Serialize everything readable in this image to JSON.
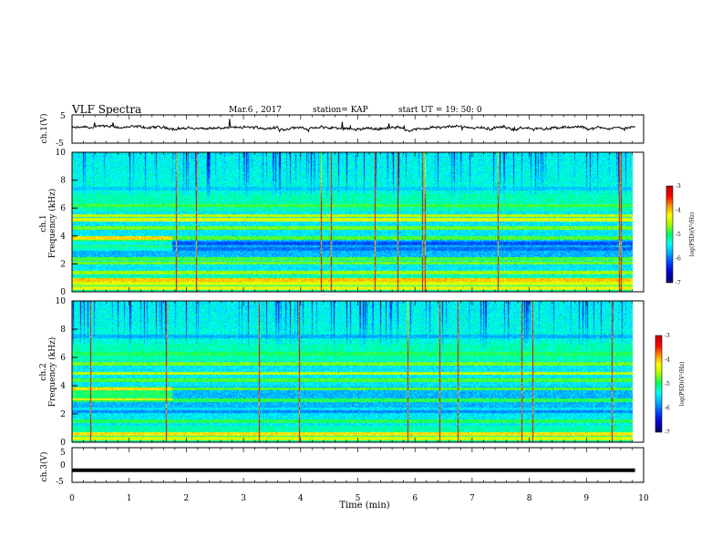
{
  "header": {
    "title": "VLF Spectra",
    "date": "Mar.6 , 2017",
    "station": "station= KAP",
    "start": "start  UT =   19: 50: 0"
  },
  "colors": {
    "colormap": [
      "#08006e",
      "#0000c8",
      "#0040ff",
      "#00a8ff",
      "#00ffff",
      "#00ff60",
      "#a0ff00",
      "#ffff00",
      "#ff9000",
      "#ff0000",
      "#c00000"
    ],
    "trace": "#000000"
  },
  "chart_data": [
    {
      "type": "line",
      "panel": "ch1-waveform",
      "ylabel": "ch.1(V)",
      "xlim": [
        0,
        10
      ],
      "ylim": [
        -5,
        5
      ],
      "yticks": [
        "5",
        "-5"
      ],
      "x_end": 9.85,
      "description_of_values": "noisy trace around 0 V, range about -1 to +2.5 V",
      "mean": 0.3,
      "spread": 1.2
    },
    {
      "type": "heatmap",
      "panel": "ch1-spectrogram",
      "ylabel": "ch.1\nFrequency (kHz)",
      "xlim": [
        0,
        10
      ],
      "ylim": [
        0,
        10
      ],
      "yticks": [
        "0",
        "2",
        "4",
        "6",
        "8",
        "10"
      ],
      "colorbar": {
        "label": "log(PSD)(V²/Hz)",
        "range": [
          -7,
          -3
        ],
        "ticks": [
          "-3",
          "-4",
          "-5",
          "-6",
          "-7"
        ]
      },
      "bands": [
        {
          "f": 0.3,
          "level": 0.85
        },
        {
          "f": 0.6,
          "level": 0.8
        },
        {
          "f": 0.9,
          "level": 0.95
        },
        {
          "f": 1.4,
          "level": 0.75
        },
        {
          "f": 2.1,
          "level": 0.7
        },
        {
          "f": 2.4,
          "level": 0.65
        },
        {
          "f": 3.1,
          "level": 0.2
        },
        {
          "f": 3.5,
          "level": 0.15
        },
        {
          "f": 3.9,
          "level": 0.7
        },
        {
          "f": 4.6,
          "level": 0.7
        },
        {
          "f": 5.2,
          "level": 0.85
        },
        {
          "f": 5.5,
          "level": 0.8
        },
        {
          "f": 6.2,
          "level": 0.6
        },
        {
          "f": 7.4,
          "level": 0.3
        }
      ]
    },
    {
      "type": "heatmap",
      "panel": "ch2-spectrogram",
      "ylabel": "ch.2\nFrequency (kHz)",
      "xlim": [
        0,
        10
      ],
      "ylim": [
        0,
        10
      ],
      "yticks": [
        "0",
        "2",
        "4",
        "6",
        "8",
        "10"
      ],
      "colorbar": {
        "label": "log(PSD)(V²/Hz)",
        "range": [
          -7,
          -3
        ],
        "ticks": [
          "-3",
          "-4",
          "-5",
          "-6",
          "-7"
        ]
      },
      "bands": [
        {
          "f": 0.3,
          "level": 0.8
        },
        {
          "f": 0.6,
          "level": 0.9
        },
        {
          "f": 1.5,
          "level": 0.6
        },
        {
          "f": 2.2,
          "level": 0.2
        },
        {
          "f": 3.0,
          "level": 0.65
        },
        {
          "f": 3.8,
          "level": 0.7
        },
        {
          "f": 4.4,
          "level": 0.65
        },
        {
          "f": 4.9,
          "level": 0.8
        },
        {
          "f": 5.6,
          "level": 0.7
        },
        {
          "f": 6.3,
          "level": 0.55
        },
        {
          "f": 7.5,
          "level": 0.25
        }
      ]
    },
    {
      "type": "line",
      "panel": "ch3-waveform",
      "ylabel": "ch.3(V)",
      "xlim": [
        0,
        10
      ],
      "ylim": [
        -5,
        5
      ],
      "yticks": [
        "5",
        "0",
        "-5"
      ],
      "x": [
        0,
        9.85
      ],
      "y": [
        -1.5,
        -1.5
      ]
    }
  ],
  "xaxis": {
    "label": "Time (min)",
    "ticks": [
      "0",
      "1",
      "2",
      "3",
      "4",
      "5",
      "6",
      "7",
      "8",
      "9",
      "10"
    ]
  }
}
